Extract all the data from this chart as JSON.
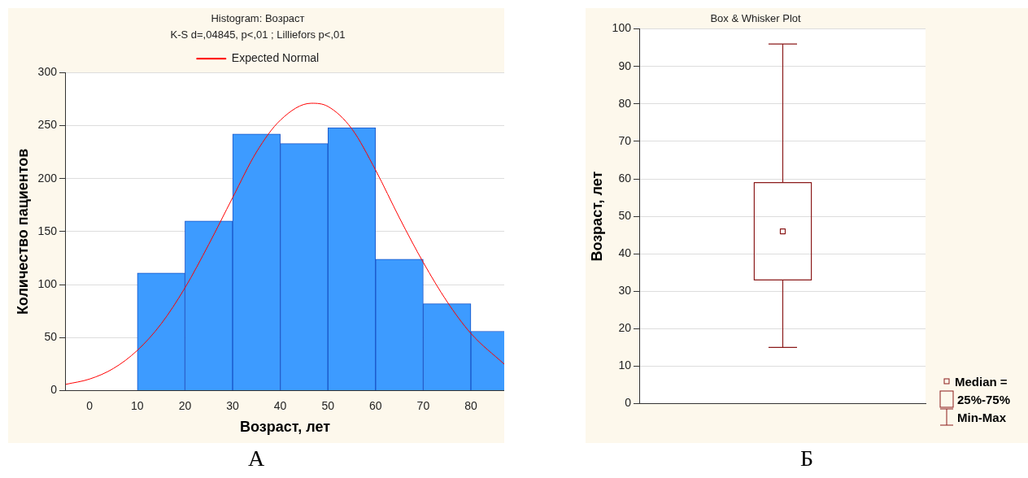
{
  "chart_data": [
    {
      "type": "histogram",
      "title": "Histogram: Возраст",
      "subtitle": "K-S d=,04845, p<,01 ; Lilliefors p<,01",
      "xlabel": "Возраст, лет",
      "ylabel": "Количество пациентов",
      "bins": [
        10,
        20,
        30,
        40,
        50,
        60,
        70,
        80,
        90
      ],
      "values": [
        111,
        160,
        242,
        233,
        248,
        124,
        82,
        56
      ],
      "color": "#3d9bff",
      "series": [
        {
          "type": "line",
          "name": "Expected Normal",
          "color": "#ff0000",
          "x": [
            -5,
            0,
            5,
            10,
            15,
            20,
            25,
            30,
            35,
            40,
            46.5,
            50,
            55,
            60,
            65,
            70,
            75,
            80,
            87
          ],
          "values": [
            6,
            11,
            21,
            38,
            63,
            97,
            138,
            182,
            225,
            255,
            271,
            268,
            247,
            208,
            163,
            121,
            84,
            54,
            25
          ]
        }
      ],
      "xlim": [
        -5,
        87
      ],
      "xticks": [
        0,
        10,
        20,
        30,
        40,
        50,
        60,
        70,
        80
      ],
      "ylim": [
        0,
        300
      ],
      "yticks": [
        0,
        50,
        100,
        150,
        200,
        250,
        300
      ],
      "grid": "y",
      "legend": "top",
      "marker": "none",
      "annotations": [
        "А"
      ]
    },
    {
      "type": "box",
      "title": "Box & Whisker Plot",
      "ylabel": "Возраст, лет",
      "categories": [
        null
      ],
      "color": "#8b1a1a",
      "boxes": [
        {
          "low": 15,
          "q1": 33,
          "median": 46,
          "q3": 59,
          "high": 96
        }
      ],
      "ylim": [
        0,
        100
      ],
      "yticks": [
        0,
        10,
        20,
        30,
        40,
        50,
        60,
        70,
        80,
        90,
        100
      ],
      "grid": "y",
      "annotations": [
        "Median =",
        "25%-75%",
        "Min-Max",
        "Б"
      ]
    }
  ]
}
